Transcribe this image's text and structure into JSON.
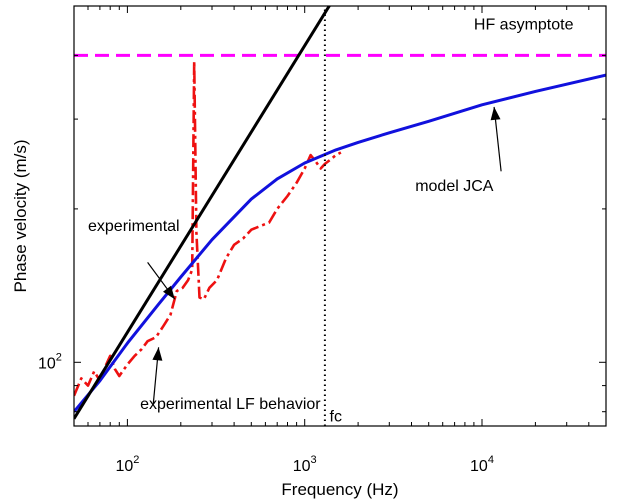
{
  "chart_data": {
    "type": "line",
    "title": "",
    "xlabel": "Frequency (Hz)",
    "ylabel": "Phase velocity (m/s)",
    "x_scale": "log",
    "y_scale": "log",
    "xlim": [
      50,
      50000
    ],
    "ylim": [
      75,
      500
    ],
    "grid": false,
    "x_tick_labels": [
      {
        "value": 100,
        "base": "10",
        "exp": "2"
      },
      {
        "value": 1000,
        "base": "10",
        "exp": "3"
      },
      {
        "value": 10000,
        "base": "10",
        "exp": "4"
      }
    ],
    "y_tick_labels": [
      {
        "value": 100,
        "base": "10",
        "exp": "2"
      }
    ],
    "series": [
      {
        "key": "hf_asymptote",
        "color": "#ff00ff",
        "style": "dashed",
        "x": [
          50,
          50000
        ],
        "y": [
          400,
          400
        ]
      },
      {
        "key": "experimental",
        "color": "#ee1111",
        "style": "dash-dot",
        "x": [
          50,
          55,
          60,
          65,
          70,
          75,
          80,
          85,
          90,
          100,
          110,
          120,
          130,
          145,
          160,
          175,
          190,
          205,
          220,
          232,
          238,
          245,
          255,
          270,
          290,
          320,
          360,
          400,
          450,
          500,
          560,
          630,
          700,
          800,
          900,
          1000,
          1080,
          1150,
          1230,
          1300,
          1400,
          1500,
          1600
        ],
        "y": [
          86,
          93,
          90,
          96,
          92,
          98,
          103,
          97,
          94,
          99,
          103,
          106,
          110,
          112,
          118,
          124,
          138,
          140,
          145,
          152,
          390,
          180,
          134,
          133,
          140,
          145,
          160,
          170,
          175,
          182,
          185,
          188,
          200,
          212,
          225,
          240,
          255,
          248,
          240,
          245,
          250,
          255,
          258
        ]
      },
      {
        "key": "model_jca",
        "color": "#1111dd",
        "style": "solid",
        "x": [
          50,
          70,
          100,
          150,
          200,
          300,
          500,
          700,
          1000,
          1500,
          2000,
          3000,
          5000,
          10000,
          20000,
          50000
        ],
        "y": [
          80,
          92,
          109,
          130,
          147,
          174,
          209,
          229,
          246,
          261,
          270,
          282,
          297,
          320,
          340,
          366
        ]
      },
      {
        "key": "experimental_lf_behavior",
        "color": "#000000",
        "style": "solid",
        "x": [
          50,
          1500
        ],
        "y": [
          77.5,
          525
        ]
      },
      {
        "key": "fc",
        "color": "#000000",
        "style": "dotted",
        "x": [
          1300,
          1300
        ],
        "y": [
          75,
          500
        ]
      }
    ],
    "annotations": [
      {
        "text": "HF asymptote",
        "x": 9000,
        "y": 450
      },
      {
        "text": "model JCA",
        "x": 4200,
        "y": 217
      },
      {
        "text": "experimental",
        "x": 60,
        "y": 181
      },
      {
        "text": "experimental LF behavior",
        "x": 118,
        "y": 81
      },
      {
        "text": "fc",
        "x": 1380,
        "y": 76.5
      }
    ],
    "arrows": [
      {
        "from": [
          12800,
          237
        ],
        "to": [
          11700,
          317
        ]
      },
      {
        "from": [
          130,
          157
        ],
        "to": [
          185,
          133
        ]
      },
      {
        "from": [
          140,
          83
        ],
        "to": [
          150,
          107
        ]
      }
    ]
  }
}
